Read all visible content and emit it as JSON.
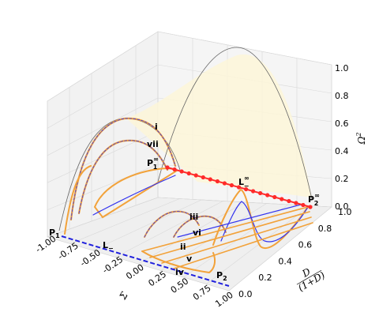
{
  "chart_data": {
    "type": "3d-line",
    "x_ticks": [
      "-1.00",
      "-0.75",
      "-0.50",
      "-0.25",
      "0.00",
      "0.25",
      "0.50",
      "0.75",
      "1.00"
    ],
    "y_ticks": [
      "0.0",
      "0.2",
      "0.4",
      "0.6",
      "0.8",
      "1.0"
    ],
    "z_ticks": [
      "0.0",
      "0.2",
      "0.4",
      "0.6",
      "0.8",
      "1.0"
    ],
    "x_range": [
      -1,
      1
    ],
    "y_range": [
      0,
      1
    ],
    "z_range": [
      0,
      1
    ],
    "xlabel": "Σ",
    "ylabel_num": "D",
    "ylabel_den": "(1+D)",
    "zlabel": "Ω",
    "zlabel_sup": "2",
    "grid": true,
    "point_labels": {
      "P1": "P",
      "P1_sub": "1",
      "P2": "P",
      "P2_sub": "2",
      "P1inf": "P",
      "P1inf_sub": "1",
      "P1inf_sup": "∞",
      "P2inf": "P",
      "P2inf_sub": "2",
      "P2inf_sup": "∞",
      "Lminus": "L",
      "Lminus_sub": "−",
      "Linf": "L",
      "Linf_sup": "∞",
      "Linf_sub": "−"
    },
    "orbit_labels": [
      "i",
      "ii",
      "iii",
      "iv",
      "v",
      "vi",
      "vii"
    ],
    "surfaces": [
      {
        "kind": "parabolic-arch",
        "at_y": 1,
        "peak": 1
      },
      {
        "kind": "parabolic-arch",
        "at_y": 0,
        "peak": 0.8
      }
    ],
    "lines": [
      {
        "name": "L−",
        "from": [
          -1,
          0,
          0
        ],
        "to": [
          1,
          0,
          0
        ],
        "style": "blue-dashed"
      },
      {
        "name": "L∞−",
        "from": [
          -0.98,
          1,
          0.38
        ],
        "to": [
          1,
          1,
          0
        ],
        "style": "red-dotted"
      }
    ],
    "colors": {
      "orange": "#f2a23a",
      "blue": "#3333ee",
      "red": "#ff2a2a",
      "cream": "#fdf6d8",
      "grid": "#d9d9d9"
    }
  }
}
